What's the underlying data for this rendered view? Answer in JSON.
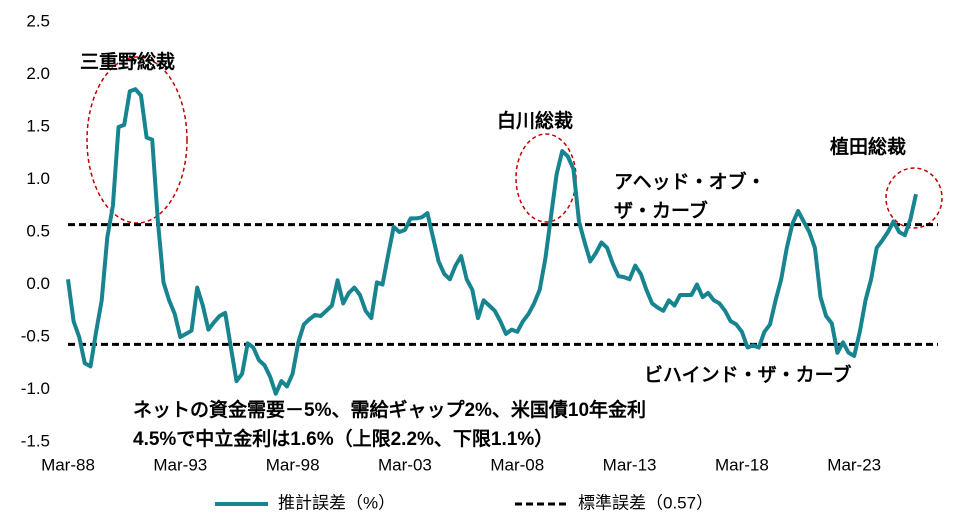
{
  "chart_data": {
    "type": "line",
    "categories": [
      "Mar-88",
      null,
      null,
      null,
      null,
      null,
      null,
      null,
      null,
      null,
      null,
      null,
      null,
      null,
      null,
      null,
      null,
      null,
      null,
      null,
      "Mar-93",
      null,
      null,
      null,
      null,
      null,
      null,
      null,
      null,
      null,
      null,
      null,
      null,
      null,
      null,
      null,
      null,
      null,
      null,
      null,
      "Mar-98",
      null,
      null,
      null,
      null,
      null,
      null,
      null,
      null,
      null,
      null,
      null,
      null,
      null,
      null,
      null,
      null,
      null,
      null,
      null,
      "Mar-03",
      null,
      null,
      null,
      null,
      null,
      null,
      null,
      null,
      null,
      null,
      null,
      null,
      null,
      null,
      null,
      null,
      null,
      null,
      null,
      "Mar-08",
      null,
      null,
      null,
      null,
      null,
      null,
      null,
      null,
      null,
      null,
      null,
      null,
      null,
      null,
      null,
      null,
      null,
      null,
      null,
      "Mar-13",
      null,
      null,
      null,
      null,
      null,
      null,
      null,
      null,
      null,
      null,
      null,
      null,
      null,
      null,
      null,
      null,
      null,
      null,
      null,
      "Mar-18",
      null,
      null,
      null,
      null,
      null,
      null,
      null,
      null,
      null,
      null,
      null,
      null,
      null,
      null,
      null,
      null,
      null,
      null,
      null,
      "Mar-23",
      null,
      null,
      null,
      null,
      null,
      null,
      null,
      null,
      null,
      null,
      null
    ],
    "series": [
      {
        "name": "推計誤差（%）",
        "color": "#17848f",
        "values": [
          0.05,
          -0.35,
          -0.5,
          -0.75,
          -0.78,
          -0.45,
          -0.15,
          0.45,
          0.75,
          1.5,
          1.52,
          1.84,
          1.86,
          1.8,
          1.4,
          1.38,
          0.6,
          0.02,
          -0.15,
          -0.28,
          -0.5,
          -0.47,
          -0.44,
          -0.03,
          -0.2,
          -0.43,
          -0.36,
          -0.3,
          -0.27,
          -0.6,
          -0.92,
          -0.85,
          -0.56,
          -0.6,
          -0.72,
          -0.77,
          -0.88,
          -1.04,
          -0.92,
          -0.97,
          -0.85,
          -0.55,
          -0.38,
          -0.33,
          -0.29,
          -0.3,
          -0.25,
          -0.2,
          0.04,
          -0.18,
          -0.08,
          -0.03,
          -0.1,
          -0.25,
          -0.32,
          0.02,
          0.0,
          0.28,
          0.55,
          0.5,
          0.52,
          0.63,
          0.63,
          0.64,
          0.68,
          0.45,
          0.22,
          0.1,
          0.05,
          0.18,
          0.27,
          0.05,
          -0.05,
          -0.32,
          -0.15,
          -0.2,
          -0.25,
          -0.35,
          -0.47,
          -0.43,
          -0.45,
          -0.35,
          -0.28,
          -0.18,
          -0.05,
          0.25,
          0.65,
          1.05,
          1.27,
          1.22,
          1.1,
          0.6,
          0.4,
          0.22,
          0.3,
          0.4,
          0.35,
          0.2,
          0.08,
          0.07,
          0.05,
          0.18,
          0.1,
          -0.05,
          -0.18,
          -0.22,
          -0.25,
          -0.15,
          -0.2,
          -0.1,
          -0.1,
          -0.1,
          0.0,
          -0.12,
          -0.08,
          -0.15,
          -0.18,
          -0.25,
          -0.35,
          -0.38,
          -0.45,
          -0.6,
          -0.58,
          -0.6,
          -0.45,
          -0.38,
          -0.15,
          0.05,
          0.35,
          0.58,
          0.7,
          0.6,
          0.5,
          0.35,
          -0.12,
          -0.3,
          -0.37,
          -0.65,
          -0.55,
          -0.65,
          -0.68,
          -0.45,
          -0.15,
          0.05,
          0.35,
          0.42,
          0.5,
          0.6,
          0.5,
          0.47,
          0.62,
          0.86
        ]
      }
    ],
    "reference": {
      "name": "標準誤差（0.57）",
      "color": "#000000",
      "values": [
        0.57,
        -0.57
      ]
    },
    "ylim": [
      -1.5,
      2.5
    ],
    "yticks": [
      {
        "value": 2.5,
        "label": "2.5"
      },
      {
        "value": 2.0,
        "label": "2.0"
      },
      {
        "value": 1.5,
        "label": "1.5"
      },
      {
        "value": 1.0,
        "label": "1.0"
      },
      {
        "value": 0.5,
        "label": "0.5"
      },
      {
        "value": 0.0,
        "label": "0.0"
      },
      {
        "value": -0.5,
        "label": "-0.5"
      },
      {
        "value": -1.0,
        "label": "-1.0"
      },
      {
        "value": -1.5,
        "label": "-1.5"
      }
    ],
    "annotations": [
      [
        "三重野総裁"
      ],
      [
        "白川総裁"
      ],
      [
        "植田総裁"
      ],
      [
        "アヘッド・オブ・",
        "ザ・カーブ"
      ],
      [
        "ビハインド・ザ・カーブ"
      ],
      [
        "ネットの資金需要－5%、需給ギャップ2%、米国債10年金利",
        "4.5%で中立金利は1.6%（上限2.2%、下限1.1%）"
      ]
    ]
  }
}
